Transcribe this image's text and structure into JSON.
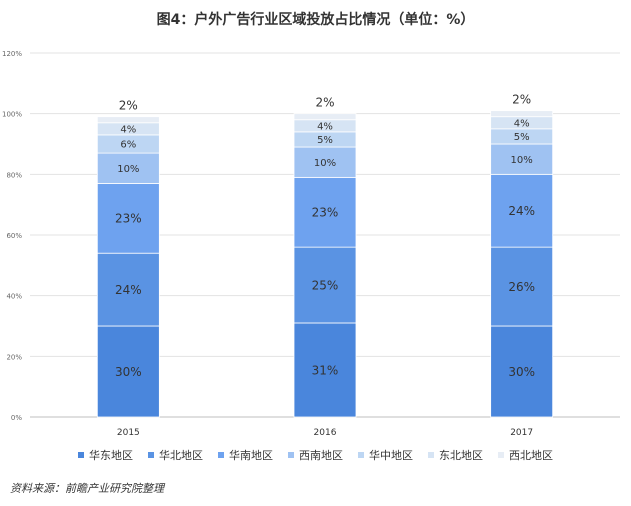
{
  "title": "图4：户外广告行业区域投放占比情况（单位：%）",
  "source": "资料来源：前瞻产业研究院整理",
  "chart_data": {
    "type": "bar",
    "stacked": true,
    "categories": [
      "2015",
      "2016",
      "2017"
    ],
    "ylim": [
      0,
      120
    ],
    "yticks": [
      "0%",
      "20%",
      "40%",
      "60%",
      "80%",
      "100%",
      "120%"
    ],
    "grid": true,
    "legend_position": "bottom",
    "series": [
      {
        "name": "华东地区",
        "values": [
          30,
          31,
          30
        ],
        "labels": [
          "30%",
          "31%",
          "30%"
        ],
        "color": "#4a86dc"
      },
      {
        "name": "华北地区",
        "values": [
          24,
          25,
          26
        ],
        "labels": [
          "24%",
          "25%",
          "26%"
        ],
        "color": "#5a93e3"
      },
      {
        "name": "华南地区",
        "values": [
          23,
          23,
          24
        ],
        "labels": [
          "23%",
          "23%",
          "24%"
        ],
        "color": "#6ea2ef"
      },
      {
        "name": "西南地区",
        "values": [
          10,
          10,
          10
        ],
        "labels": [
          "10%",
          "10%",
          "10%"
        ],
        "color": "#9fc2f2"
      },
      {
        "name": "华中地区",
        "values": [
          6,
          5,
          5
        ],
        "labels": [
          "6%",
          "5%",
          "5%"
        ],
        "color": "#bdd6f3"
      },
      {
        "name": "东北地区",
        "values": [
          4,
          4,
          4
        ],
        "labels": [
          "4%",
          "4%",
          "4%"
        ],
        "color": "#d6e4f4"
      },
      {
        "name": "西北地区",
        "values": [
          2,
          2,
          2
        ],
        "labels": [
          "2%",
          "2%",
          "2%"
        ],
        "color": "#e7edf5"
      }
    ]
  }
}
